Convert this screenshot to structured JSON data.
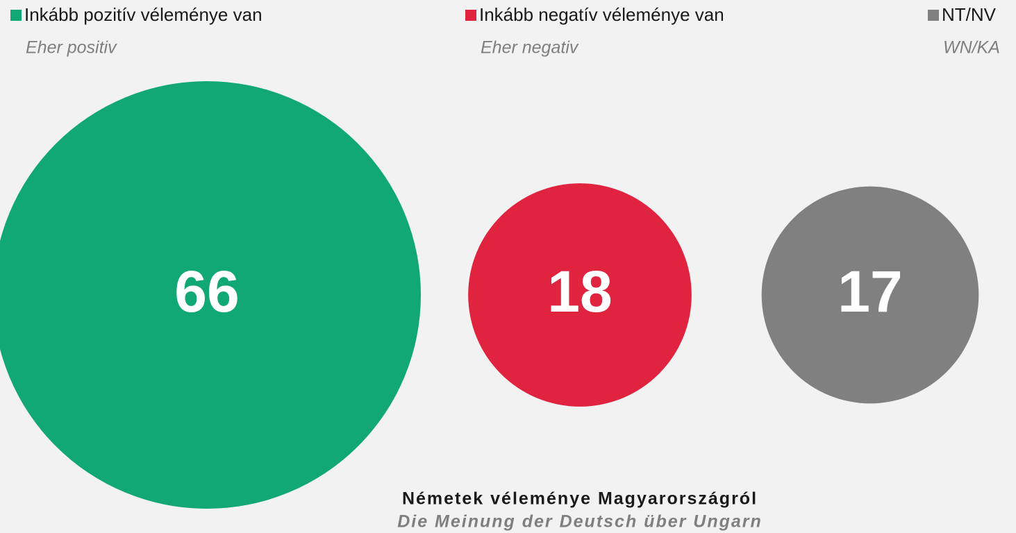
{
  "chart_data": {
    "type": "bubble",
    "title": "Németek véleménye Magyarországról",
    "subtitle": "Die Meinung der Deutsch über Ungarn",
    "categories": [
      "Inkább pozitív véleménye van",
      "Inkább negatív véleménye van",
      "NT/NV"
    ],
    "category_translations": [
      "Eher positiv",
      "Eher negativ",
      "WN/KA"
    ],
    "values": [
      66,
      18,
      17
    ],
    "colors": [
      "#12a876",
      "#e0233e",
      "#808080"
    ]
  }
}
